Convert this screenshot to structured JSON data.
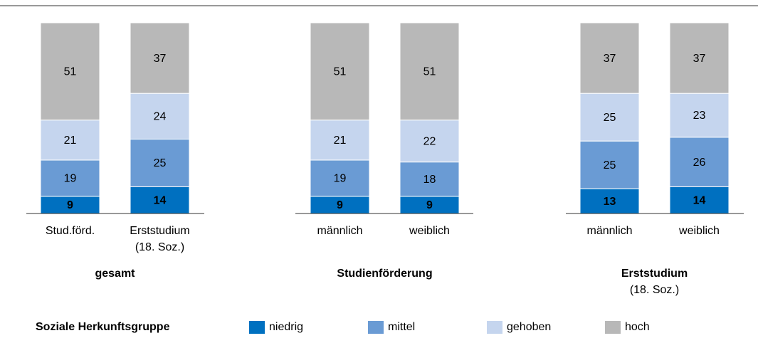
{
  "legend_title": "Soziale Herkunftsgruppe",
  "chart_data": [
    {
      "type": "bar",
      "stacked": true,
      "title": "gesamt",
      "categories": [
        "Stud.förd.",
        "Erststudium (18. Soz.)"
      ],
      "ylim": [
        0,
        100
      ],
      "series": [
        {
          "name": "niedrig",
          "color": "#0070c0",
          "values": [
            9,
            14
          ]
        },
        {
          "name": "mittel",
          "color": "#6a9bd4",
          "values": [
            19,
            25
          ]
        },
        {
          "name": "gehoben",
          "color": "#c5d5ee",
          "values": [
            21,
            24
          ]
        },
        {
          "name": "hoch",
          "color": "#b8b8b8",
          "values": [
            51,
            37
          ]
        }
      ]
    },
    {
      "type": "bar",
      "stacked": true,
      "title": "Studienförderung",
      "categories": [
        "männlich",
        "weiblich"
      ],
      "ylim": [
        0,
        100
      ],
      "series": [
        {
          "name": "niedrig",
          "color": "#0070c0",
          "values": [
            9,
            9
          ]
        },
        {
          "name": "mittel",
          "color": "#6a9bd4",
          "values": [
            19,
            18
          ]
        },
        {
          "name": "gehoben",
          "color": "#c5d5ee",
          "values": [
            21,
            22
          ]
        },
        {
          "name": "hoch",
          "color": "#b8b8b8",
          "values": [
            51,
            51
          ]
        }
      ]
    },
    {
      "type": "bar",
      "stacked": true,
      "title": "Erststudium",
      "subtitle": "(18. Soz.)",
      "categories": [
        "männlich",
        "weiblich"
      ],
      "ylim": [
        0,
        100
      ],
      "series": [
        {
          "name": "niedrig",
          "color": "#0070c0",
          "values": [
            13,
            14
          ]
        },
        {
          "name": "mittel",
          "color": "#6a9bd4",
          "values": [
            25,
            26
          ]
        },
        {
          "name": "gehoben",
          "color": "#c5d5ee",
          "values": [
            25,
            23
          ]
        },
        {
          "name": "hoch",
          "color": "#b8b8b8",
          "values": [
            37,
            37
          ]
        }
      ]
    }
  ]
}
